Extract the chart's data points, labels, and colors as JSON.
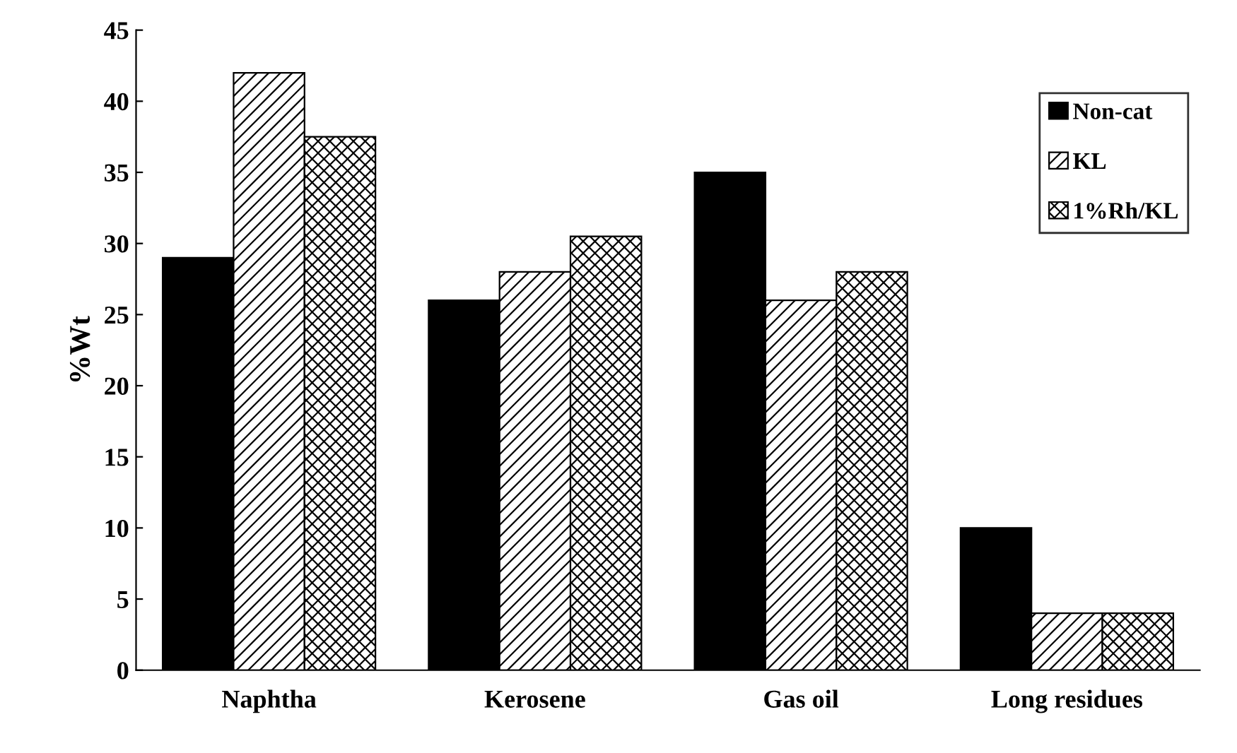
{
  "chart_data": {
    "type": "bar",
    "ylabel": "%Wt",
    "categories": [
      "Naphtha",
      "Kerosene",
      "Gas oil",
      "Long residues"
    ],
    "series": [
      {
        "name": "Non-cat",
        "color": "#000000",
        "values": [
          29,
          26,
          35,
          10
        ]
      },
      {
        "name": "KL",
        "color": "#000000",
        "values": [
          42,
          28,
          26,
          4
        ]
      },
      {
        "name": "1%Rh/KL",
        "color": "#000000",
        "values": [
          37.5,
          30.5,
          28,
          4
        ]
      }
    ],
    "ylim": [
      0,
      45
    ],
    "yticks": [
      0,
      5,
      10,
      15,
      20,
      25,
      30,
      35,
      40,
      45
    ],
    "grid": false,
    "legend": "top right"
  }
}
